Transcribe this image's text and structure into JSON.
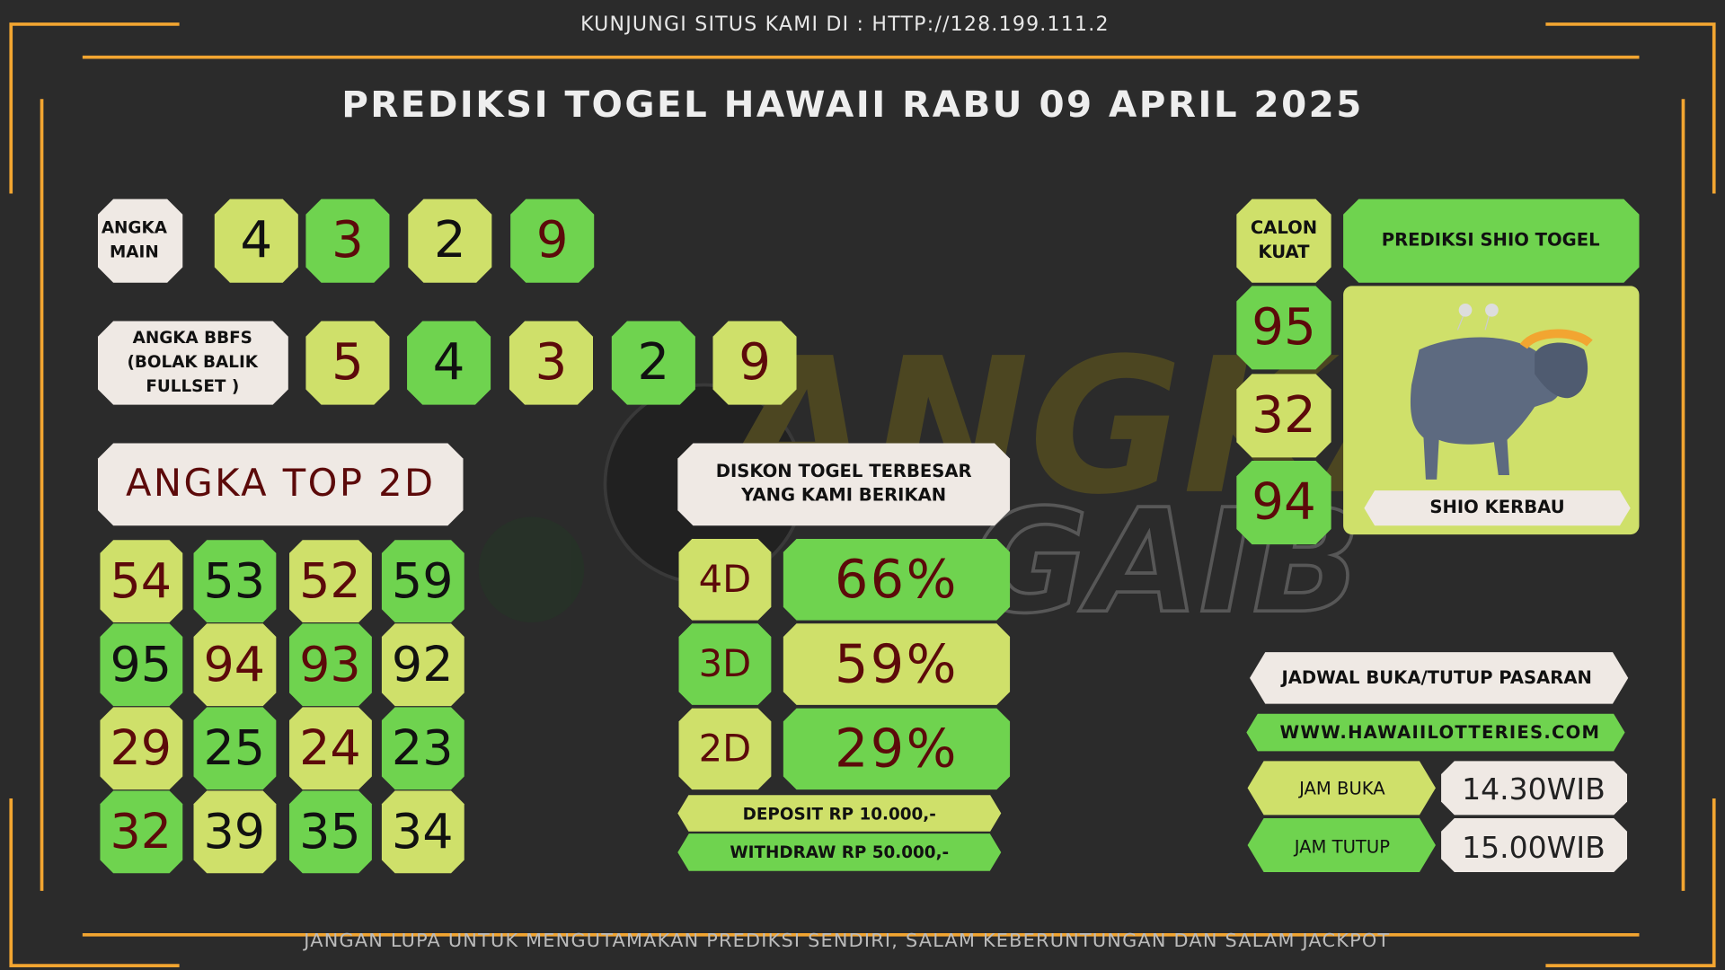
{
  "header": {
    "site": "KUNJUNGI SITUS KAMI DI : HTTP://128.199.111.2",
    "title": "PREDIKSI TOGEL HAWAII RABU 09 APRIL 2025"
  },
  "angka_main": {
    "label": [
      "ANGKA",
      "MAIN"
    ],
    "numbers": [
      "4",
      "3",
      "2",
      "9"
    ]
  },
  "bbfs": {
    "label": [
      "ANGKA BBFS",
      "(BOLAK BALIK",
      "FULLSET )"
    ],
    "numbers": [
      "5",
      "4",
      "3",
      "2",
      "9"
    ]
  },
  "top_2d": {
    "title": "ANGKA TOP 2D",
    "numbers": [
      "54",
      "53",
      "52",
      "59",
      "95",
      "94",
      "93",
      "92",
      "29",
      "25",
      "24",
      "23",
      "32",
      "39",
      "35",
      "34"
    ]
  },
  "diskon": {
    "label": [
      "DISKON TOGEL TERBESAR",
      "YANG KAMI BERIKAN"
    ],
    "rows": [
      {
        "label": "4D",
        "value": "66%"
      },
      {
        "label": "3D",
        "value": "59%"
      },
      {
        "label": "2D",
        "value": "29%"
      }
    ],
    "deposit": "DEPOSIT RP 10.000,-",
    "withdraw": "WITHDRAW RP 50.000,-"
  },
  "calon_kuat": {
    "label": [
      "CALON",
      "KUAT"
    ],
    "numbers": [
      "95",
      "32",
      "94"
    ]
  },
  "shio": {
    "title": "PREDIKSI SHIO TOGEL",
    "name": "SHIO KERBAU"
  },
  "jadwal": {
    "title": "JADWAL BUKA/TUTUP PASARAN",
    "website": "WWW.HAWAIILOTTERIES.COM",
    "buka_label": "JAM BUKA",
    "buka": "14.30WIB",
    "tutup_label": "JAM TUTUP",
    "tutup": "15.00WIB"
  },
  "footer": "JANGAN LUPA UNTUK MENGUTAMAKAN PREDIKSI SENDIRI, SALAM KEBERUNTUNGAN DAN SALAM JACKPOT"
}
